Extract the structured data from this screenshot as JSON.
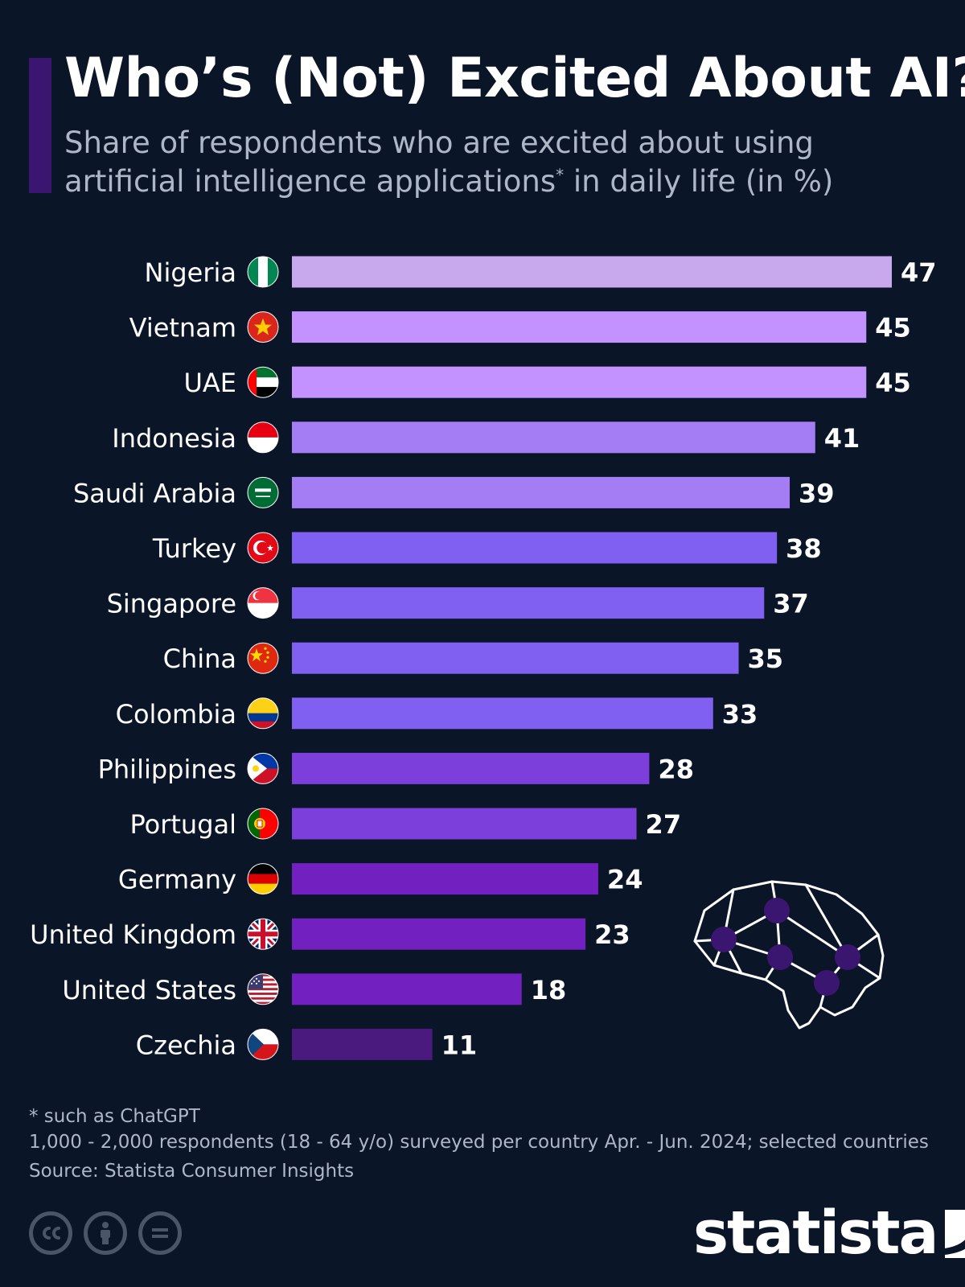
{
  "header": {
    "title": "Who’s (Not) Excited About AI?",
    "subtitle_part1": "Share of respondents who are excited about using artificial intelligence applications",
    "subtitle_asterisk": "*",
    "subtitle_part2": " in daily life (in %)"
  },
  "chart_data": {
    "type": "bar",
    "orientation": "horizontal",
    "title": "Who’s (Not) Excited About AI?",
    "xlabel": "",
    "ylabel": "",
    "xlim": [
      0,
      47
    ],
    "categories": [
      "Nigeria",
      "Vietnam",
      "UAE",
      "Indonesia",
      "Saudi Arabia",
      "Turkey",
      "Singapore",
      "China",
      "Colombia",
      "Philippines",
      "Portugal",
      "Germany",
      "United Kingdom",
      "United States",
      "Czechia"
    ],
    "values": [
      47,
      45,
      45,
      41,
      39,
      38,
      37,
      35,
      33,
      28,
      27,
      24,
      23,
      18,
      11
    ],
    "bar_colors": [
      "#c9a9ee",
      "#c492ff",
      "#c492ff",
      "#a47df5",
      "#a47df5",
      "#8060f0",
      "#8060f0",
      "#8060f0",
      "#8060f0",
      "#7d3fdb",
      "#7d3fdb",
      "#7320c0",
      "#7320c0",
      "#7320c0",
      "#4a1a7e"
    ],
    "flags": [
      "nigeria-flag-icon",
      "vietnam-flag-icon",
      "uae-flag-icon",
      "indonesia-flag-icon",
      "saudi-arabia-flag-icon",
      "turkey-flag-icon",
      "singapore-flag-icon",
      "china-flag-icon",
      "colombia-flag-icon",
      "philippines-flag-icon",
      "portugal-flag-icon",
      "germany-flag-icon",
      "united-kingdom-flag-icon",
      "united-states-flag-icon",
      "czechia-flag-icon"
    ]
  },
  "footnotes": {
    "note": "* such as ChatGPT",
    "method": "1,000 - 2,000 respondents (18 - 64 y/o) surveyed per country Apr. - Jun. 2024; selected countries",
    "source": "Source: Statista Consumer Insights"
  },
  "branding": {
    "logo": "statista",
    "license_icons": [
      "cc-icon",
      "attribution-icon",
      "no-derivatives-icon"
    ],
    "illustration": "brain-network-icon"
  },
  "colors": {
    "background": "#0b1528",
    "accent": "#3b1670",
    "muted_text": "#aeb7c6"
  }
}
